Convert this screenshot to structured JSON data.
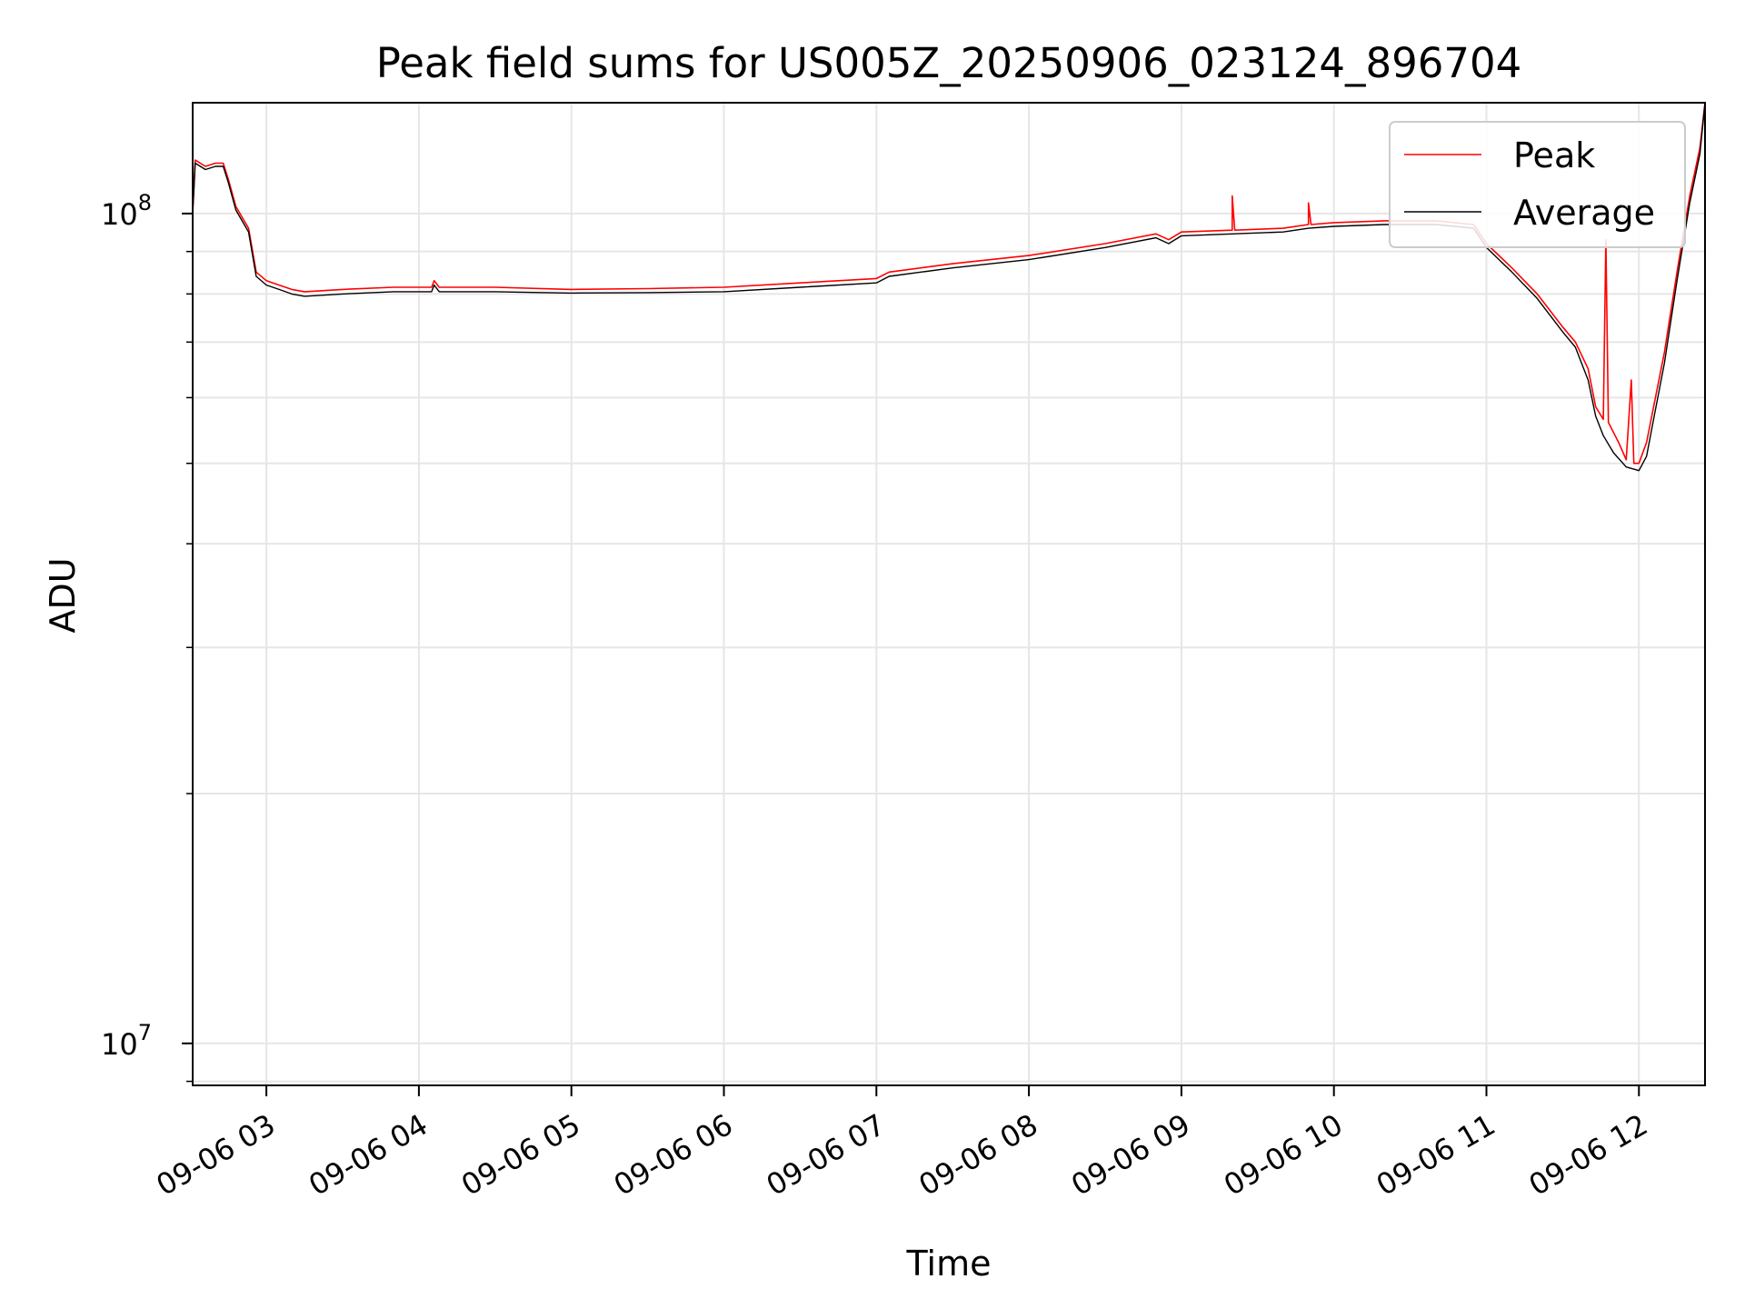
{
  "chart_data": {
    "type": "line",
    "title": "Peak field sums for US005Z_20250906_023124_896704",
    "xlabel": "Time",
    "ylabel": "ADU",
    "y_scale": "log",
    "xlim": [
      "09-06 02:31",
      "09-06 12:26"
    ],
    "ylim": [
      8900000.0,
      136000000.0
    ],
    "x_ticks": [
      "09-06 03",
      "09-06 04",
      "09-06 05",
      "09-06 06",
      "09-06 07",
      "09-06 08",
      "09-06 09",
      "09-06 10",
      "09-06 11",
      "09-06 12"
    ],
    "y_ticks": [
      {
        "value": 10000000.0,
        "base": "10",
        "exp": "7"
      },
      {
        "value": 100000000.0,
        "base": "10",
        "exp": "8"
      }
    ],
    "grid": true,
    "legend_position": "top-right",
    "series": [
      {
        "name": "Peak",
        "color": "#ff0000",
        "points": [
          [
            "09-06 02:31",
            100000000.0
          ],
          [
            "09-06 02:32",
            116000000.0
          ],
          [
            "09-06 02:36",
            114000000.0
          ],
          [
            "09-06 02:40",
            115000000.0
          ],
          [
            "09-06 02:43",
            115000000.0
          ],
          [
            "09-06 02:45",
            110000000.0
          ],
          [
            "09-06 02:48",
            102000000.0
          ],
          [
            "09-06 02:53",
            96000000.0
          ],
          [
            "09-06 02:56",
            85000000.0
          ],
          [
            "09-06 03:00",
            83000000.0
          ],
          [
            "09-06 03:05",
            82000000.0
          ],
          [
            "09-06 03:10",
            81000000.0
          ],
          [
            "09-06 03:15",
            80500000.0
          ],
          [
            "09-06 03:30",
            81000000.0
          ],
          [
            "09-06 03:50",
            81500000.0
          ],
          [
            "09-06 04:05",
            81500000.0
          ],
          [
            "09-06 04:06",
            83000000.0
          ],
          [
            "09-06 04:08",
            81500000.0
          ],
          [
            "09-06 04:30",
            81500000.0
          ],
          [
            "09-06 05:00",
            81000000.0
          ],
          [
            "09-06 05:30",
            81200000.0
          ],
          [
            "09-06 06:00",
            81500000.0
          ],
          [
            "09-06 06:30",
            82500000.0
          ],
          [
            "09-06 07:00",
            83500000.0
          ],
          [
            "09-06 07:05",
            85000000.0
          ],
          [
            "09-06 07:30",
            87000000.0
          ],
          [
            "09-06 08:00",
            89000000.0
          ],
          [
            "09-06 08:30",
            92000000.0
          ],
          [
            "09-06 08:50",
            94500000.0
          ],
          [
            "09-06 08:55",
            93000000.0
          ],
          [
            "09-06 09:00",
            95000000.0
          ],
          [
            "09-06 09:20",
            95500000.0
          ],
          [
            "09-06 09:20",
            105000000.0
          ],
          [
            "09-06 09:21",
            95500000.0
          ],
          [
            "09-06 09:40",
            96000000.0
          ],
          [
            "09-06 09:50",
            97000000.0
          ],
          [
            "09-06 09:50",
            103000000.0
          ],
          [
            "09-06 09:51",
            97000000.0
          ],
          [
            "09-06 10:00",
            97500000.0
          ],
          [
            "09-06 10:20",
            98000000.0
          ],
          [
            "09-06 10:40",
            98000000.0
          ],
          [
            "09-06 10:55",
            97000000.0
          ],
          [
            "09-06 11:00",
            92000000.0
          ],
          [
            "09-06 11:10",
            86000000.0
          ],
          [
            "09-06 11:20",
            80000000.0
          ],
          [
            "09-06 11:30",
            73000000.0
          ],
          [
            "09-06 11:35",
            70000000.0
          ],
          [
            "09-06 11:40",
            65000000.0
          ],
          [
            "09-06 11:43",
            58500000.0
          ],
          [
            "09-06 11:46",
            56500000.0
          ],
          [
            "09-06 11:47",
            93000000.0
          ],
          [
            "09-06 11:48",
            56000000.0
          ],
          [
            "09-06 11:52",
            53000000.0
          ],
          [
            "09-06 11:55",
            50500000.0
          ],
          [
            "09-06 11:57",
            63000000.0
          ],
          [
            "09-06 11:58",
            50000000.0
          ],
          [
            "09-06 12:00",
            50000000.0
          ],
          [
            "09-06 12:03",
            53000000.0
          ],
          [
            "09-06 12:06",
            59000000.0
          ],
          [
            "09-06 12:10",
            68000000.0
          ],
          [
            "09-06 12:15",
            85000000.0
          ],
          [
            "09-06 12:20",
            105000000.0
          ],
          [
            "09-06 12:24",
            120000000.0
          ],
          [
            "09-06 12:26",
            136000000.0
          ]
        ]
      },
      {
        "name": "Average",
        "color": "#000000",
        "points": [
          [
            "09-06 02:31",
            100000000.0
          ],
          [
            "09-06 02:32",
            115000000.0
          ],
          [
            "09-06 02:36",
            113000000.0
          ],
          [
            "09-06 02:40",
            114000000.0
          ],
          [
            "09-06 02:43",
            114000000.0
          ],
          [
            "09-06 02:45",
            109000000.0
          ],
          [
            "09-06 02:48",
            101000000.0
          ],
          [
            "09-06 02:53",
            95000000.0
          ],
          [
            "09-06 02:56",
            84000000.0
          ],
          [
            "09-06 03:00",
            82000000.0
          ],
          [
            "09-06 03:05",
            81000000.0
          ],
          [
            "09-06 03:10",
            80000000.0
          ],
          [
            "09-06 03:15",
            79500000.0
          ],
          [
            "09-06 03:30",
            80000000.0
          ],
          [
            "09-06 03:50",
            80500000.0
          ],
          [
            "09-06 04:05",
            80500000.0
          ],
          [
            "09-06 04:06",
            82000000.0
          ],
          [
            "09-06 04:08",
            80500000.0
          ],
          [
            "09-06 04:30",
            80500000.0
          ],
          [
            "09-06 05:00",
            80200000.0
          ],
          [
            "09-06 05:30",
            80300000.0
          ],
          [
            "09-06 06:00",
            80500000.0
          ],
          [
            "09-06 06:30",
            81500000.0
          ],
          [
            "09-06 07:00",
            82500000.0
          ],
          [
            "09-06 07:05",
            84000000.0
          ],
          [
            "09-06 07:30",
            86000000.0
          ],
          [
            "09-06 08:00",
            88000000.0
          ],
          [
            "09-06 08:30",
            91000000.0
          ],
          [
            "09-06 08:50",
            93500000.0
          ],
          [
            "09-06 08:55",
            92000000.0
          ],
          [
            "09-06 09:00",
            94000000.0
          ],
          [
            "09-06 09:20",
            94500000.0
          ],
          [
            "09-06 09:40",
            95000000.0
          ],
          [
            "09-06 09:50",
            96000000.0
          ],
          [
            "09-06 10:00",
            96500000.0
          ],
          [
            "09-06 10:20",
            97000000.0
          ],
          [
            "09-06 10:40",
            97000000.0
          ],
          [
            "09-06 10:55",
            96000000.0
          ],
          [
            "09-06 11:00",
            91000000.0
          ],
          [
            "09-06 11:10",
            85000000.0
          ],
          [
            "09-06 11:20",
            79000000.0
          ],
          [
            "09-06 11:30",
            72000000.0
          ],
          [
            "09-06 11:35",
            69000000.0
          ],
          [
            "09-06 11:40",
            63000000.0
          ],
          [
            "09-06 11:43",
            57000000.0
          ],
          [
            "09-06 11:46",
            54000000.0
          ],
          [
            "09-06 11:50",
            51500000.0
          ],
          [
            "09-06 11:55",
            49500000.0
          ],
          [
            "09-06 12:00",
            49000000.0
          ],
          [
            "09-06 12:03",
            51000000.0
          ],
          [
            "09-06 12:06",
            57000000.0
          ],
          [
            "09-06 12:10",
            66000000.0
          ],
          [
            "09-06 12:15",
            83000000.0
          ],
          [
            "09-06 12:20",
            103000000.0
          ],
          [
            "09-06 12:24",
            118000000.0
          ],
          [
            "09-06 12:26",
            136000000.0
          ]
        ]
      }
    ]
  }
}
